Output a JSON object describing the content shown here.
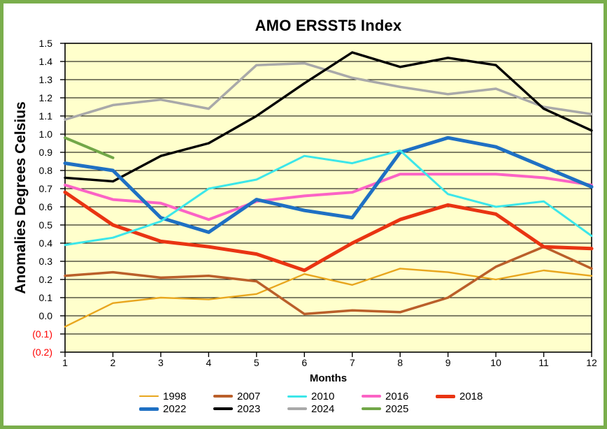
{
  "frame": {
    "border_color": "#7AAE4C",
    "background": "#FFFFFF"
  },
  "chart_data": {
    "type": "line",
    "title": "AMO ERSST5 Index",
    "xlabel": "Months",
    "ylabel": "Anomalies Degrees Celsius",
    "plot_background": "#FFFFCC",
    "grid": "horizontal",
    "grid_color": "#000000",
    "axis_color": "#000000",
    "negative_tick_color": "#FF0000",
    "ylim": [
      -0.2,
      1.5
    ],
    "legend_position": "bottom",
    "legend_columns": 5,
    "x_ticks": [
      1,
      2,
      3,
      4,
      5,
      6,
      7,
      8,
      9,
      10,
      11,
      12
    ],
    "y_ticks": [
      {
        "value": 1.5,
        "label": "1.5",
        "color": "#000000"
      },
      {
        "value": 1.4,
        "label": "1.4",
        "color": "#000000"
      },
      {
        "value": 1.3,
        "label": "1.3",
        "color": "#000000"
      },
      {
        "value": 1.2,
        "label": "1.2",
        "color": "#000000"
      },
      {
        "value": 1.1,
        "label": "1.1",
        "color": "#000000"
      },
      {
        "value": 1.0,
        "label": "1.0",
        "color": "#000000"
      },
      {
        "value": 0.9,
        "label": "0.9",
        "color": "#000000"
      },
      {
        "value": 0.8,
        "label": "0.8",
        "color": "#000000"
      },
      {
        "value": 0.7,
        "label": "0.7",
        "color": "#000000"
      },
      {
        "value": 0.6,
        "label": "0.6",
        "color": "#000000"
      },
      {
        "value": 0.5,
        "label": "0.5",
        "color": "#000000"
      },
      {
        "value": 0.4,
        "label": "0.4",
        "color": "#000000"
      },
      {
        "value": 0.3,
        "label": "0.3",
        "color": "#000000"
      },
      {
        "value": 0.2,
        "label": "0.2",
        "color": "#000000"
      },
      {
        "value": 0.1,
        "label": "0.1",
        "color": "#000000"
      },
      {
        "value": 0.0,
        "label": "0.0",
        "color": "#000000"
      },
      {
        "value": -0.1,
        "label": "(0.1)",
        "color": "#FF0000"
      },
      {
        "value": -0.2,
        "label": "(0.2)",
        "color": "#FF0000"
      }
    ],
    "series": [
      {
        "name": "1998",
        "color": "#E8A61E",
        "line_width": 2.4,
        "values": [
          -0.06,
          0.07,
          0.1,
          0.09,
          0.12,
          0.23,
          0.17,
          0.26,
          0.24,
          0.2,
          0.25,
          0.22
        ]
      },
      {
        "name": "2007",
        "color": "#BA5F2A",
        "line_width": 3.5,
        "values": [
          0.22,
          0.24,
          0.21,
          0.22,
          0.19,
          0.01,
          0.03,
          0.02,
          0.1,
          0.27,
          0.38,
          0.26
        ]
      },
      {
        "name": "2010",
        "color": "#3CE6E9",
        "line_width": 3.0,
        "values": [
          0.39,
          0.43,
          0.52,
          0.7,
          0.75,
          0.88,
          0.84,
          0.91,
          0.67,
          0.6,
          0.63,
          0.44
        ]
      },
      {
        "name": "2016",
        "color": "#FB63C5",
        "line_width": 4.0,
        "values": [
          0.72,
          0.64,
          0.62,
          0.53,
          0.63,
          0.66,
          0.68,
          0.78,
          0.78,
          0.78,
          0.76,
          0.72
        ]
      },
      {
        "name": "2018",
        "color": "#E93412",
        "line_width": 5.0,
        "values": [
          0.68,
          0.5,
          0.41,
          0.38,
          0.34,
          0.25,
          0.4,
          0.53,
          0.61,
          0.56,
          0.38,
          0.37
        ]
      },
      {
        "name": "2022",
        "color": "#1F70C3",
        "line_width": 5.0,
        "values": [
          0.84,
          0.8,
          0.54,
          0.46,
          0.64,
          0.58,
          0.54,
          0.9,
          0.98,
          0.93,
          0.82,
          0.71
        ]
      },
      {
        "name": "2023",
        "color": "#000000",
        "line_width": 3.4,
        "values": [
          0.76,
          0.74,
          0.88,
          0.95,
          1.1,
          1.28,
          1.45,
          1.37,
          1.42,
          1.38,
          1.14,
          1.02
        ]
      },
      {
        "name": "2024",
        "color": "#A9A9A9",
        "line_width": 3.5,
        "values": [
          1.08,
          1.16,
          1.19,
          1.14,
          1.38,
          1.39,
          1.31,
          1.26,
          1.22,
          1.25,
          1.15,
          1.11
        ]
      },
      {
        "name": "2025",
        "color": "#72A748",
        "line_width": 4.0,
        "values": [
          0.98,
          0.87,
          null,
          null,
          null,
          null,
          null,
          null,
          null,
          null,
          null,
          null
        ]
      }
    ],
    "draw_order": [
      "1998",
      "2007",
      "2016",
      "2018",
      "2024",
      "2023",
      "2022",
      "2010",
      "2025"
    ]
  }
}
